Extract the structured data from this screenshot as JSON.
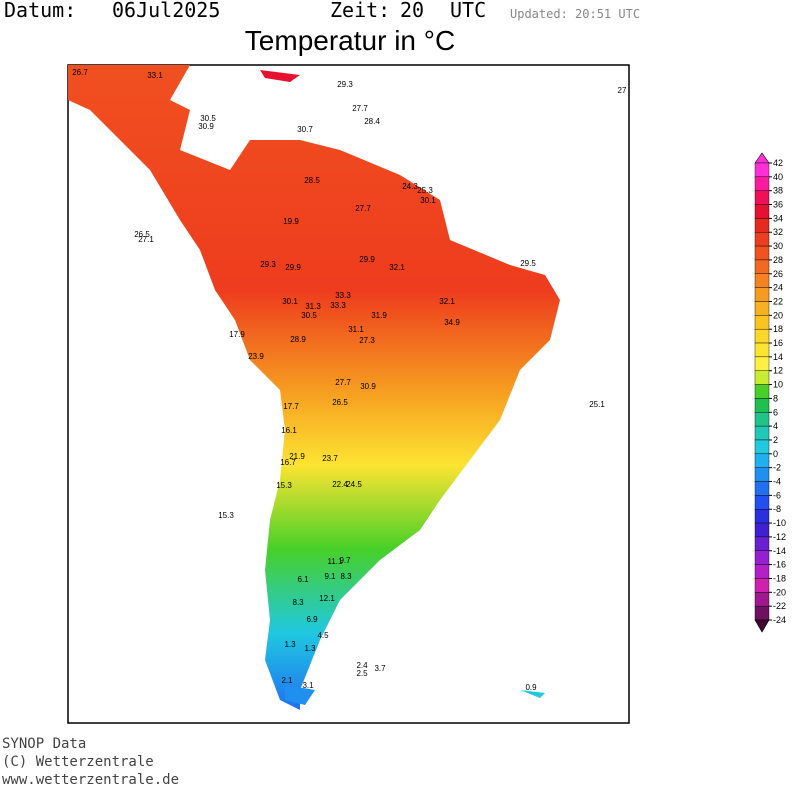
{
  "header": {
    "date_label": "Datum:",
    "date": "06Jul2025",
    "time_label": "Zeit:",
    "time": "20",
    "tz": "UTC",
    "updated": "Updated: 20:51 UTC",
    "title": "Temperatur in °C"
  },
  "footer": {
    "source": "SYNOP Data",
    "copyright": "(C) Wetterzentrale",
    "url": "www.wetterzentrale.de"
  },
  "legend": {
    "ticks": [
      42,
      40,
      38,
      36,
      34,
      32,
      30,
      28,
      26,
      24,
      22,
      20,
      18,
      16,
      14,
      12,
      10,
      8,
      6,
      4,
      2,
      0,
      -2,
      -4,
      -6,
      -8,
      -10,
      -12,
      -14,
      -16,
      -18,
      -20,
      -22,
      -24
    ],
    "colors": [
      "#ff30d8",
      "#ff1aa0",
      "#f01058",
      "#e81030",
      "#e62a1e",
      "#ee3c1e",
      "#f05220",
      "#f26a20",
      "#f48220",
      "#f69a20",
      "#f8b020",
      "#fac420",
      "#fcd628",
      "#fde432",
      "#fef040",
      "#c8ec30",
      "#48d028",
      "#20c050",
      "#20c488",
      "#20c8b8",
      "#20c8e0",
      "#20b0f0",
      "#2090f0",
      "#2070f0",
      "#2050f0",
      "#2a30e0",
      "#4020d0",
      "#6a20d0",
      "#9420d0",
      "#b420c8",
      "#d020b0",
      "#a01890",
      "#701060",
      "#400830"
    ]
  },
  "stations": [
    26.7,
    33.1,
    29.3,
    27,
    27.7,
    28.4,
    30.5,
    30.9,
    30.7,
    28.5,
    24.3,
    25.3,
    30.1,
    27.7,
    19.9,
    26.5,
    27.1,
    29.3,
    29.9,
    29.9,
    32.1,
    29.5,
    30.1,
    33.3,
    31.3,
    33.3,
    30.5,
    31.9,
    32.1,
    34.9,
    31.1,
    28.9,
    27.3,
    17.9,
    23.9,
    25.1,
    27.7,
    30.9,
    26.5,
    17.7,
    16.1,
    21.9,
    16.7,
    23.7,
    15.3,
    22.4,
    24.5,
    15.3,
    11.1,
    9.7,
    6.1,
    9.1,
    8.3,
    8.3,
    12.1,
    6.9,
    4.5,
    1.3,
    1.3,
    2.4,
    3.7,
    2.5,
    0.9,
    2.1,
    3.1
  ]
}
